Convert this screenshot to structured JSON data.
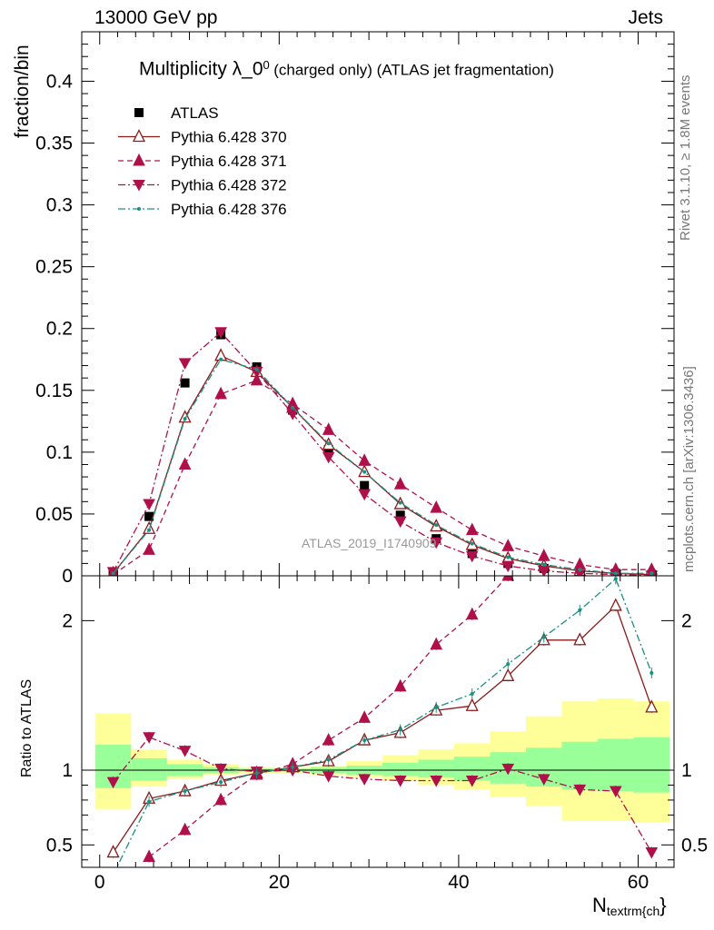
{
  "header": {
    "energy_label": "13000 GeV pp",
    "category_label": "Jets"
  },
  "title": {
    "main": "Multiplicity λ_0",
    "sup": "0",
    "sub": "(charged only) (ATLAS jet fragmentation)"
  },
  "side_labels": {
    "rivet": "Rivet 3.1.10, ≥ 1.8M events",
    "mcplots": "mcplots.cern.ch [arXiv:1306.3436]"
  },
  "watermark": "ATLAS_2019_I1740909",
  "axes": {
    "upper_ylabel": "fraction/bin",
    "ratio_ylabel": "Ratio to ATLAS",
    "xlabel_main": "N",
    "xlabel_sub": "textrm{ch",
    "xlabel_tail": "}"
  },
  "chart_data": [
    {
      "type": "scatter",
      "panel": "main",
      "x": [
        1.5,
        5.5,
        9.5,
        13.5,
        17.5,
        21.5,
        25.5,
        29.5,
        33.5,
        37.5,
        41.5,
        45.5,
        49.5,
        53.5,
        57.5,
        61.5
      ],
      "xlim": [
        -2,
        64
      ],
      "ylim": [
        0,
        0.44
      ],
      "yticks": [
        0,
        0.05,
        0.1,
        0.15,
        0.2,
        0.25,
        0.3,
        0.35,
        0.4
      ],
      "ytick_labels": [
        "0",
        "0.05",
        "0.1",
        "0.15",
        "0.2",
        "0.25",
        "0.3",
        "0.35",
        "0.4"
      ],
      "series": [
        {
          "name": "ATLAS",
          "color": "#000000",
          "style": "data",
          "values": [
            0.003,
            0.048,
            0.156,
            0.195,
            0.169,
            0.134,
            0.102,
            0.073,
            0.049,
            0.03,
            0.018,
            0.01,
            0.006,
            0.003,
            0.002,
            0.001
          ]
        },
        {
          "name": "Pythia 6.428 370",
          "color": "#8b1a1a",
          "style": "solid",
          "marker": "tri-up-open",
          "values": [
            0.002,
            0.038,
            0.128,
            0.178,
            0.165,
            0.136,
            0.106,
            0.084,
            0.058,
            0.04,
            0.025,
            0.014,
            0.008,
            0.004,
            0.002,
            0.001
          ]
        },
        {
          "name": "Pythia 6.428 371",
          "color": "#b0104a",
          "style": "dashed",
          "marker": "tri-up",
          "values": [
            0.001,
            0.021,
            0.09,
            0.147,
            0.158,
            0.139,
            0.118,
            0.093,
            0.074,
            0.055,
            0.037,
            0.024,
            0.016,
            0.009,
            0.005,
            0.005
          ]
        },
        {
          "name": "Pythia 6.428 372",
          "color": "#b0104a",
          "style": "dashdot",
          "marker": "tri-down",
          "values": [
            0.003,
            0.058,
            0.172,
            0.197,
            0.165,
            0.131,
            0.096,
            0.066,
            0.044,
            0.027,
            0.016,
            0.008,
            0.004,
            0.002,
            0.001,
            0.0
          ]
        },
        {
          "name": "Pythia 6.428 376",
          "color": "#1a9080",
          "style": "dashdot",
          "marker": "dot",
          "values": [
            0.002,
            0.037,
            0.127,
            0.175,
            0.167,
            0.136,
            0.107,
            0.084,
            0.059,
            0.041,
            0.026,
            0.015,
            0.009,
            0.005,
            0.002,
            0.002
          ]
        }
      ]
    },
    {
      "type": "scatter",
      "panel": "ratio",
      "x": [
        1.5,
        5.5,
        9.5,
        13.5,
        17.5,
        21.5,
        25.5,
        29.5,
        33.5,
        37.5,
        41.5,
        45.5,
        49.5,
        53.5,
        57.5,
        61.5
      ],
      "xlim": [
        -2,
        64
      ],
      "ylim": [
        0.35,
        2.3
      ],
      "yticks": [
        0.5,
        1,
        2
      ],
      "ytick_labels": [
        "0.5",
        "1",
        "2"
      ],
      "xticks": [
        0,
        20,
        40,
        60
      ],
      "xtick_labels": [
        "0",
        "20",
        "40",
        "60"
      ],
      "bands": {
        "edges": [
          -0.5,
          3.5,
          7.5,
          11.5,
          15.5,
          19.5,
          23.5,
          27.5,
          31.5,
          35.5,
          39.5,
          43.5,
          47.5,
          51.5,
          55.5,
          59.5,
          63.5
        ],
        "inner_lo": [
          0.88,
          0.93,
          0.96,
          0.98,
          0.99,
          0.99,
          0.98,
          0.97,
          0.96,
          0.95,
          0.93,
          0.91,
          0.89,
          0.87,
          0.86,
          0.85
        ],
        "inner_hi": [
          1.17,
          1.08,
          1.04,
          1.02,
          1.01,
          1.01,
          1.02,
          1.03,
          1.05,
          1.07,
          1.09,
          1.12,
          1.15,
          1.19,
          1.21,
          1.22
        ],
        "outer_lo": [
          0.74,
          0.89,
          0.94,
          0.97,
          0.98,
          0.98,
          0.97,
          0.95,
          0.93,
          0.9,
          0.87,
          0.82,
          0.76,
          0.66,
          0.66,
          0.65
        ],
        "outer_hi": [
          1.38,
          1.14,
          1.07,
          1.04,
          1.02,
          1.02,
          1.03,
          1.06,
          1.1,
          1.14,
          1.18,
          1.26,
          1.36,
          1.46,
          1.48,
          1.46
        ],
        "inner_color": "#99ff99",
        "outer_color": "#ffff99"
      },
      "series": [
        {
          "name": "Pythia 6.428 370",
          "color": "#8b1a1a",
          "style": "solid",
          "marker": "tri-up-open",
          "values": [
            0.45,
            0.81,
            0.86,
            0.93,
            0.98,
            1.02,
            1.06,
            1.2,
            1.25,
            1.4,
            1.43,
            1.63,
            1.87,
            1.87,
            2.1,
            1.42
          ]
        },
        {
          "name": "Pythia 6.428 371",
          "color": "#b0104a",
          "style": "dashed",
          "marker": "tri-up",
          "values": [
            null,
            0.42,
            0.6,
            0.8,
            0.97,
            1.04,
            1.2,
            1.35,
            1.56,
            1.84,
            2.04,
            2.3,
            null,
            null,
            null,
            null
          ]
        },
        {
          "name": "Pythia 6.428 372",
          "color": "#b0104a",
          "style": "dashdot",
          "marker": "tri-down",
          "values": [
            0.92,
            1.22,
            1.13,
            1.01,
            0.99,
            1.0,
            0.96,
            0.94,
            0.93,
            0.93,
            0.93,
            1.01,
            0.94,
            0.87,
            0.86,
            0.45
          ]
        },
        {
          "name": "Pythia 6.428 376",
          "color": "#1a9080",
          "style": "dashdot",
          "marker": "dot",
          "values": [
            0.3,
            0.79,
            0.86,
            0.92,
            0.98,
            1.02,
            1.07,
            1.2,
            1.27,
            1.42,
            1.51,
            1.71,
            1.89,
            2.07,
            2.28,
            1.65
          ]
        }
      ]
    }
  ]
}
